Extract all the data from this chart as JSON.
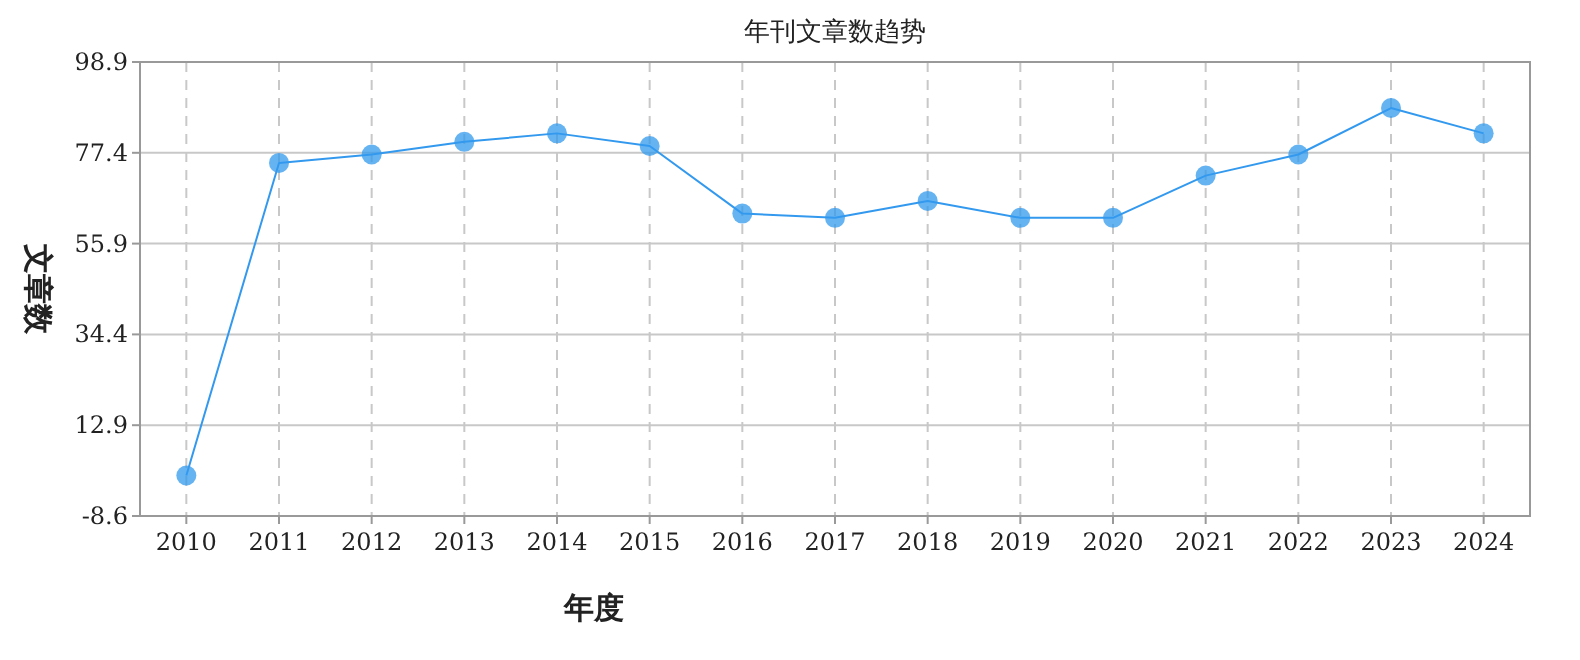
{
  "chart_data": {
    "type": "line",
    "title": "年刊文章数趋势",
    "xlabel": "年度",
    "ylabel": "文章数",
    "categories": [
      "2010",
      "2011",
      "2012",
      "2013",
      "2014",
      "2015",
      "2016",
      "2017",
      "2018",
      "2019",
      "2020",
      "2021",
      "2022",
      "2023",
      "2024"
    ],
    "series": [
      {
        "color": "#3399ee",
        "values": [
          1,
          75,
          77,
          80,
          82,
          79,
          63,
          62,
          66,
          62,
          62,
          72,
          77,
          88,
          82
        ]
      }
    ],
    "ylim": [
      -8.6,
      98.9
    ],
    "yticks": [
      -8.6,
      12.9,
      34.4,
      55.9,
      77.4,
      98.9
    ],
    "grid": true,
    "marker": "circle",
    "line_style": "solid"
  }
}
